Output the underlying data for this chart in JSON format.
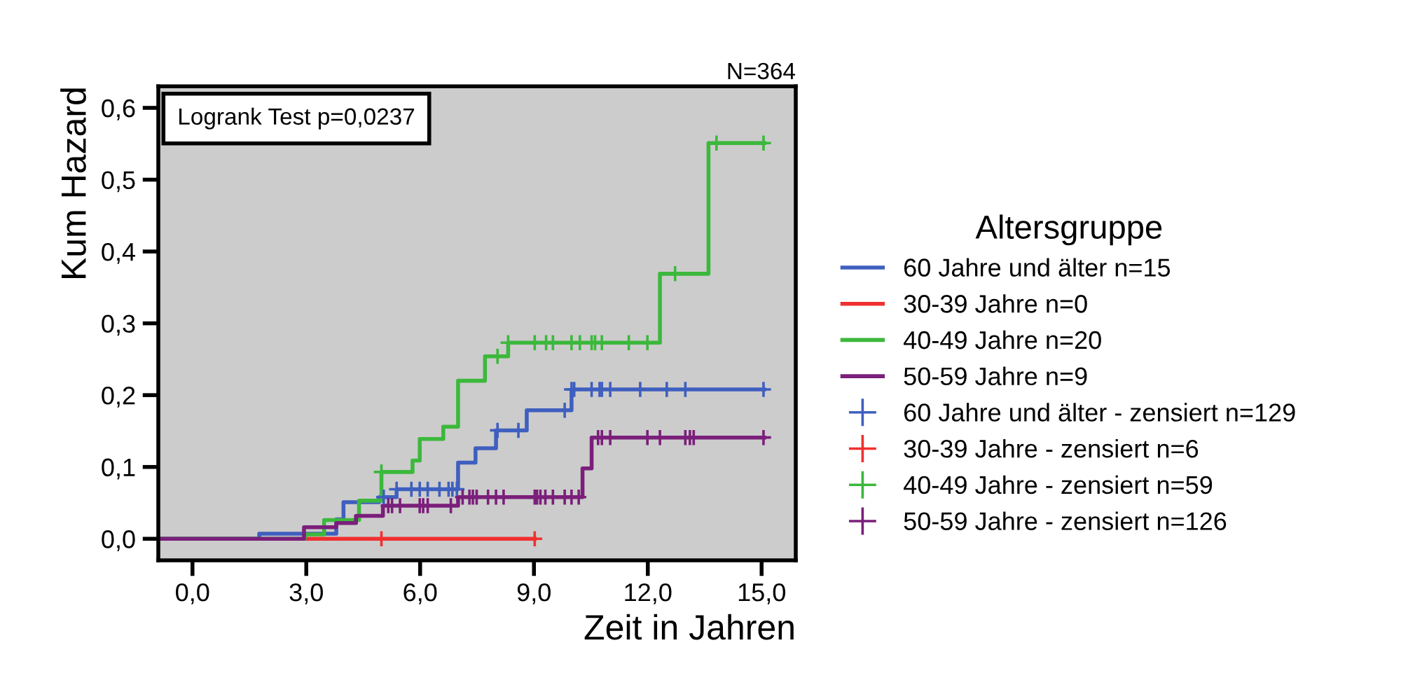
{
  "chart_data": {
    "type": "step",
    "xlabel": "Zeit in Jahren",
    "ylabel": "Kum Hazard",
    "legend_title": "Altersgruppe",
    "legend": "right",
    "grid": false,
    "annotations": [
      "N=364",
      "Logrank Test p=0,0237"
    ],
    "xlim": [
      -0.9,
      15.9
    ],
    "ylim": [
      -0.03,
      0.63
    ],
    "xticks": [
      {
        "value": 0,
        "label": "0,0"
      },
      {
        "value": 3,
        "label": "3,0"
      },
      {
        "value": 6,
        "label": "6,0"
      },
      {
        "value": 9,
        "label": "9,0"
      },
      {
        "value": 12,
        "label": "12,0"
      },
      {
        "value": 15,
        "label": "15,0"
      }
    ],
    "yticks": [
      {
        "value": 0,
        "label": "0,0"
      },
      {
        "value": 0.1,
        "label": "0,1"
      },
      {
        "value": 0.2,
        "label": "0,2"
      },
      {
        "value": 0.3,
        "label": "0,3"
      },
      {
        "value": 0.4,
        "label": "0,4"
      },
      {
        "value": 0.5,
        "label": "0,5"
      },
      {
        "value": 0.6,
        "label": "0,6"
      }
    ],
    "series": [
      {
        "name": "60 Jahre und älter n=15",
        "color": "#3f5fbf",
        "x": [
          -0.9,
          1.76,
          3.79,
          3.98,
          4.92,
          5.38,
          7.0,
          7.46,
          8.0,
          8.81,
          9.99,
          15.07
        ],
        "values": [
          0,
          0.007,
          0.027,
          0.051,
          0.058,
          0.069,
          0.106,
          0.126,
          0.151,
          0.179,
          0.208,
          0.208
        ]
      },
      {
        "name": "30-39 Jahre n=0",
        "color": "#f03030",
        "x": [
          2.96,
          9.02
        ],
        "values": [
          0,
          0
        ]
      },
      {
        "name": "40-49 Jahre n=20",
        "color": "#3cb83c",
        "x": [
          -0.9,
          2.96,
          3.47,
          4.39,
          4.98,
          5.8,
          5.99,
          6.61,
          7.0,
          7.71,
          8.32,
          12.32,
          13.6,
          15.07
        ],
        "values": [
          0,
          0.006,
          0.026,
          0.053,
          0.093,
          0.109,
          0.139,
          0.156,
          0.22,
          0.254,
          0.273,
          0.369,
          0.551,
          0.551
        ]
      },
      {
        "name": "50-59 Jahre n=9",
        "color": "#7b1f7b",
        "x": [
          -0.9,
          2.94,
          3.79,
          4.31,
          5.02,
          7.0,
          10.28,
          10.52,
          15.07
        ],
        "values": [
          0,
          0.016,
          0.022,
          0.032,
          0.046,
          0.058,
          0.098,
          0.141,
          0.141
        ]
      },
      {
        "name": "60 Jahre und älter - zensiert n=129",
        "type": "scatter",
        "marker": "cross",
        "color": "#3f5fbf",
        "x": [
          5.04,
          5.38,
          5.77,
          5.99,
          6.2,
          6.51,
          6.75,
          6.85,
          6.97,
          8.04,
          8.59,
          9.81,
          9.99,
          10.06,
          10.52,
          10.73,
          10.79,
          11.01,
          11.8,
          12.5,
          12.99,
          15.05
        ],
        "values": [
          0.058,
          0.069,
          0.069,
          0.069,
          0.069,
          0.069,
          0.069,
          0.069,
          0.069,
          0.151,
          0.151,
          0.179,
          0.208,
          0.208,
          0.208,
          0.208,
          0.208,
          0.208,
          0.208,
          0.208,
          0.208,
          0.208
        ]
      },
      {
        "name": "30-39 Jahre - zensiert n=6",
        "type": "scatter",
        "marker": "cross",
        "color": "#f03030",
        "x": [
          4.98,
          9.02
        ],
        "values": [
          0,
          0
        ]
      },
      {
        "name": "40-49 Jahre - zensiert n=59",
        "type": "scatter",
        "marker": "cross",
        "color": "#3cb83c",
        "x": [
          4.98,
          8.04,
          8.32,
          9.02,
          9.32,
          9.5,
          9.99,
          10.21,
          10.52,
          10.61,
          10.79,
          11.5,
          11.99,
          12.72,
          13.81,
          15.05
        ],
        "values": [
          0.093,
          0.254,
          0.273,
          0.273,
          0.273,
          0.273,
          0.273,
          0.273,
          0.273,
          0.273,
          0.273,
          0.273,
          0.273,
          0.369,
          0.551,
          0.551
        ]
      },
      {
        "name": "50-59 Jahre - zensiert n=126",
        "type": "scatter",
        "marker": "cross",
        "color": "#7b1f7b",
        "x": [
          5.16,
          5.26,
          5.47,
          5.99,
          6.08,
          6.2,
          6.81,
          7.12,
          7.3,
          7.39,
          7.49,
          7.79,
          8.0,
          8.2,
          9.02,
          9.08,
          9.17,
          9.3,
          9.5,
          9.81,
          9.99,
          10.18,
          10.69,
          10.79,
          11.01,
          11.99,
          12.32,
          12.99,
          13.11,
          13.21,
          15.05
        ],
        "values": [
          0.046,
          0.046,
          0.046,
          0.046,
          0.046,
          0.046,
          0.046,
          0.058,
          0.058,
          0.058,
          0.058,
          0.058,
          0.058,
          0.058,
          0.058,
          0.058,
          0.058,
          0.058,
          0.058,
          0.058,
          0.058,
          0.058,
          0.141,
          0.141,
          0.141,
          0.141,
          0.141,
          0.141,
          0.141,
          0.141,
          0.141
        ]
      }
    ]
  }
}
